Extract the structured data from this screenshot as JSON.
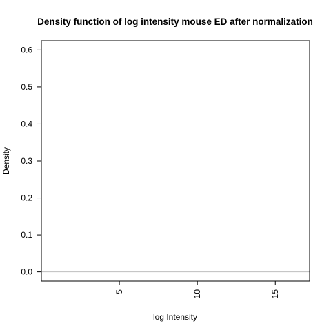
{
  "chart_data": {
    "type": "line",
    "title": "Density function of log intensity mouse ED after normalization",
    "xlabel": "log Intensity",
    "ylabel": "Density",
    "xlim": [
      0,
      17.2
    ],
    "ylim": [
      -0.025,
      0.625
    ],
    "x_ticks": [
      {
        "value": 5,
        "label": "5"
      },
      {
        "value": 10,
        "label": "10"
      },
      {
        "value": 15,
        "label": "15"
      }
    ],
    "y_ticks": [
      {
        "value": 0.0,
        "label": "0.0"
      },
      {
        "value": 0.1,
        "label": "0.1"
      },
      {
        "value": 0.2,
        "label": "0.2"
      },
      {
        "value": 0.3,
        "label": "0.3"
      },
      {
        "value": 0.4,
        "label": "0.4"
      },
      {
        "value": 0.5,
        "label": "0.5"
      },
      {
        "value": 0.6,
        "label": "0.6"
      }
    ],
    "reference_lines": [
      {
        "orientation": "horizontal",
        "y": 0,
        "color": "#bebebe"
      }
    ],
    "series": [],
    "grid": false,
    "legend": "none"
  }
}
